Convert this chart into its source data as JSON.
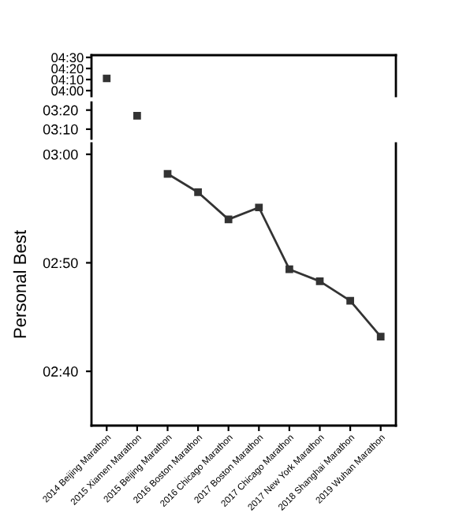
{
  "chart_data": [
    {
      "type": "line",
      "values": [
        251,
        null,
        null,
        null,
        null,
        null,
        null,
        null,
        null,
        null
      ],
      "color": "#333333",
      "marker": "square",
      "ylim": [
        235,
        272
      ],
      "yticks": [
        {
          "value": 240,
          "label": "04:00"
        },
        {
          "value": 250,
          "label": "04:10"
        },
        {
          "value": 260,
          "label": "04:20"
        },
        {
          "value": 270,
          "label": "04:30"
        }
      ],
      "tick_labels": "y",
      "grid": false,
      "legend": false
    },
    {
      "type": "line",
      "values": [
        null,
        197,
        null,
        null,
        null,
        null,
        null,
        null,
        null,
        null
      ],
      "color": "#333333",
      "marker": "square",
      "ylim": [
        185,
        204
      ],
      "yticks": [
        {
          "value": 190,
          "label": "03:10"
        },
        {
          "value": 200,
          "label": "03:20"
        }
      ],
      "tick_labels": "y",
      "grid": false,
      "legend": false
    },
    {
      "type": "line",
      "categories": [
        "2014 Beijing Marathon",
        "2015 Xiamen Marathon",
        "2015 Beijing Marathon",
        "2016 Boston Marathon",
        "2016 Chicago Marathon",
        "2017 Boston Marathon",
        "2017 Chicago Marathon",
        "2017 New York Marathon",
        "2018 Shanghai Marathon",
        "2019 Wuhan Marathon"
      ],
      "values": [
        null,
        null,
        178.2,
        176.5,
        174.0,
        175.1,
        169.4,
        168.3,
        166.5,
        163.2
      ],
      "color": "#333333",
      "marker": "square",
      "ylim": [
        155,
        181
      ],
      "yticks": [
        {
          "value": 160,
          "label": "02:40"
        },
        {
          "value": 170,
          "label": "02:50"
        },
        {
          "value": 180,
          "label": "03:00"
        }
      ],
      "ylabel": "Personal Best",
      "grid": false,
      "legend": false
    }
  ]
}
